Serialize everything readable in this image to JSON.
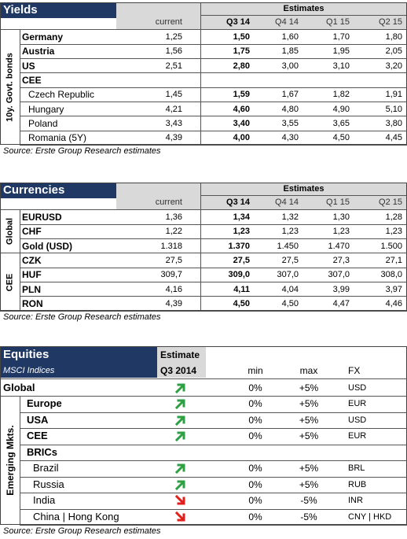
{
  "yields": {
    "title": "Yields",
    "estimates_label": "Estimates",
    "side_label": "10y. Govt. bonds",
    "columns": [
      "current",
      "Q3 14",
      "Q4 14",
      "Q1 15",
      "Q2 15"
    ],
    "rows": [
      {
        "name": "Germany",
        "values": [
          "1,25",
          "1,50",
          "1,60",
          "1,70",
          "1,80"
        ]
      },
      {
        "name": "Austria",
        "values": [
          "1,56",
          "1,75",
          "1,85",
          "1,95",
          "2,05"
        ]
      },
      {
        "name": "US",
        "values": [
          "2,51",
          "2,80",
          "3,00",
          "3,10",
          "3,20"
        ]
      },
      {
        "name": "CEE",
        "rows": [
          {
            "name": "Czech Republic",
            "values": [
              "1,45",
              "1,59",
              "1,67",
              "1,82",
              "1,91"
            ]
          },
          {
            "name": "Hungary",
            "values": [
              "4,21",
              "4,60",
              "4,80",
              "4,90",
              "5,10"
            ]
          },
          {
            "name": "Poland",
            "values": [
              "3,43",
              "3,40",
              "3,55",
              "3,65",
              "3,80"
            ]
          },
          {
            "name": "Romania (5Y)",
            "values": [
              "4,39",
              "4,00",
              "4,30",
              "4,50",
              "4,45"
            ]
          }
        ]
      }
    ],
    "source": "Source: Erste Group Research estimates"
  },
  "currencies": {
    "title": "Currencies",
    "estimates_label": "Estimates",
    "columns": [
      "current",
      "Q3 14",
      "Q4 14",
      "Q1 15",
      "Q2 15"
    ],
    "groups": [
      {
        "label": "Global",
        "rows": [
          {
            "name": "EURUSD",
            "values": [
              "1,36",
              "1,34",
              "1,32",
              "1,30",
              "1,28"
            ]
          },
          {
            "name": "CHF",
            "values": [
              "1,22",
              "1,23",
              "1,23",
              "1,23",
              "1,23"
            ]
          },
          {
            "name": "Gold (USD)",
            "values": [
              "1.318",
              "1.370",
              "1.450",
              "1.470",
              "1.500"
            ]
          }
        ]
      },
      {
        "label": "CEE",
        "rows": [
          {
            "name": "CZK",
            "values": [
              "27,5",
              "27,5",
              "27,5",
              "27,3",
              "27,1"
            ]
          },
          {
            "name": "HUF",
            "values": [
              "309,7",
              "309,0",
              "307,0",
              "307,0",
              "308,0"
            ]
          },
          {
            "name": "PLN",
            "values": [
              "4,16",
              "4,11",
              "4,04",
              "3,99",
              "3,97"
            ]
          },
          {
            "name": "RON",
            "values": [
              "4,39",
              "4,50",
              "4,50",
              "4,47",
              "4,46"
            ]
          }
        ]
      }
    ],
    "source": "Source: Erste Group Research estimates"
  },
  "equities": {
    "title": "Equities",
    "subtitle": "MSCI Indices",
    "estimate_label": "Estimate",
    "period": "Q3 2014",
    "columns": [
      "min",
      "max",
      "FX"
    ],
    "global": {
      "name": "Global",
      "outlook": "up",
      "min": "0%",
      "max": "+5%",
      "fx": "USD"
    },
    "side_label": "Emerging Mkts.",
    "rows": [
      {
        "name": "Europe",
        "outlook": "up",
        "min": "0%",
        "max": "+5%",
        "fx": "EUR"
      },
      {
        "name": "USA",
        "outlook": "up",
        "min": "0%",
        "max": "+5%",
        "fx": "USD"
      },
      {
        "name": "CEE",
        "outlook": "up",
        "min": "0%",
        "max": "+5%",
        "fx": "EUR"
      },
      {
        "name": "BRICs",
        "rows": [
          {
            "name": "Brazil",
            "outlook": "up",
            "min": "0%",
            "max": "+5%",
            "fx": "BRL"
          },
          {
            "name": "Russia",
            "outlook": "up",
            "min": "0%",
            "max": "+5%",
            "fx": "RUB"
          },
          {
            "name": "India",
            "outlook": "down",
            "min": "0%",
            "max": "-5%",
            "fx": "INR"
          },
          {
            "name": "China | Hong Kong",
            "outlook": "down",
            "min": "0%",
            "max": "-5%",
            "fx": "CNY | HKD"
          }
        ]
      }
    ],
    "source": "Source: Erste Group Research estimates"
  }
}
